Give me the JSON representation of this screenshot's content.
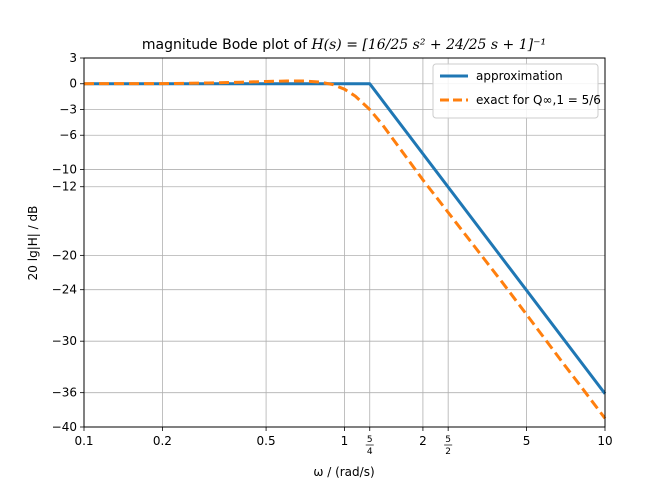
{
  "chart_data": {
    "type": "line",
    "title": {
      "prefix": "magnitude Bode plot of ",
      "formula": "H(s) = [16/25 s² + 24/25 s + 1]⁻¹"
    },
    "xlabel": "ω / (rad/s)",
    "ylabel": "20 lg|H| / dB",
    "xscale": "log",
    "xlim": [
      0.1,
      10
    ],
    "ylim": [
      -40,
      3
    ],
    "grid": true,
    "legend_position": "top-right",
    "xticks": [
      {
        "value": 0.1,
        "label": "0.1"
      },
      {
        "value": 0.2,
        "label": "0.2"
      },
      {
        "value": 0.5,
        "label": "0.5"
      },
      {
        "value": 1,
        "label": "1"
      },
      {
        "value": 1.25,
        "label": "5/4"
      },
      {
        "value": 2,
        "label": "2"
      },
      {
        "value": 2.5,
        "label": "5/2"
      },
      {
        "value": 5,
        "label": "5"
      },
      {
        "value": 10,
        "label": "10"
      }
    ],
    "yticks": [
      3,
      0,
      -3,
      -6,
      -10,
      -12,
      -20,
      -24,
      -30,
      -36,
      -40
    ],
    "series": [
      {
        "name": "approximation",
        "color": "#1f77b4",
        "style": "solid",
        "x": [
          0.1,
          1.25,
          10
        ],
        "y": [
          0,
          0,
          -36.12
        ]
      },
      {
        "name": "exact for Q∞,1 = 5/6",
        "color": "#ff7f0e",
        "style": "dashed",
        "x": [
          0.1,
          0.2,
          0.3,
          0.4,
          0.5,
          0.6,
          0.7,
          0.8,
          0.9,
          1.0,
          1.1,
          1.25,
          1.4,
          1.6,
          1.8,
          2.0,
          2.5,
          3.0,
          4.0,
          5.0,
          6.0,
          7.0,
          8.0,
          10.0
        ],
        "y": [
          0.0,
          0.02,
          0.09,
          0.18,
          0.26,
          0.32,
          0.32,
          0.2,
          -0.09,
          -0.64,
          -1.44,
          -3.0,
          -4.8,
          -7.2,
          -9.3,
          -11.2,
          -15.0,
          -18.1,
          -23.0,
          -26.9,
          -30.1,
          -32.8,
          -35.1,
          -39.0
        ]
      }
    ]
  }
}
